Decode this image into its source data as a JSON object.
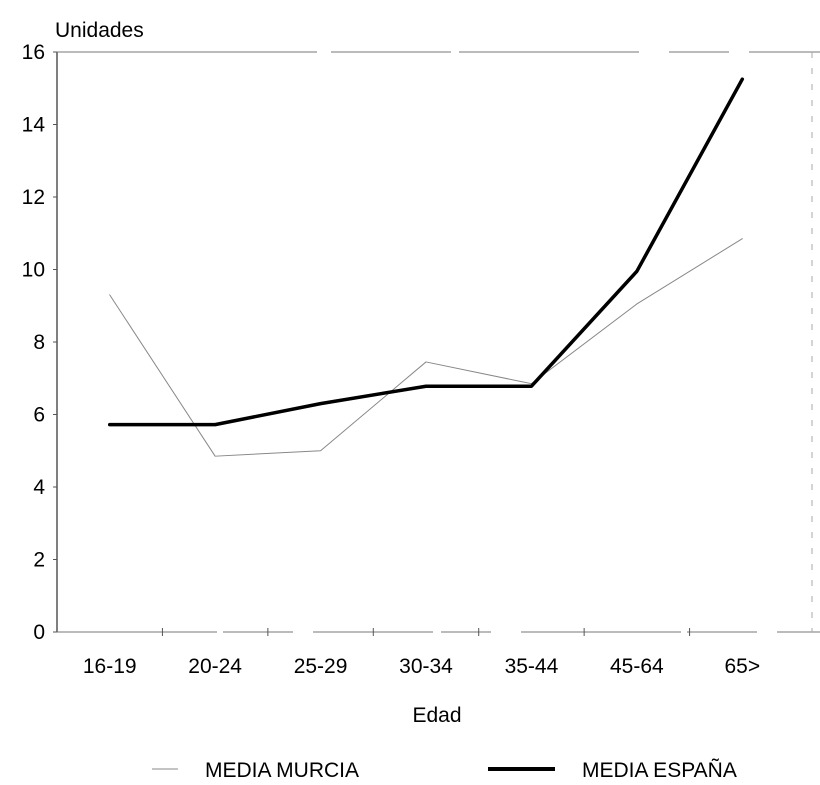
{
  "chart_data": {
    "type": "line",
    "title": "",
    "ylabel": "Unidades",
    "xlabel": "Edad",
    "categories": [
      "16-19",
      "20-24",
      "25-29",
      "30-34",
      "35-44",
      "45-64",
      "65>"
    ],
    "ylim": [
      0,
      16
    ],
    "yticks": [
      "0",
      "2",
      "4",
      "6",
      "8",
      "10",
      "12",
      "14",
      "16"
    ],
    "grid": false,
    "legend_position": "bottom",
    "series": [
      {
        "name": "MEDIA MURCIA",
        "values": [
          9.3,
          4.85,
          5.0,
          7.45,
          6.85,
          9.05,
          10.85
        ],
        "color": "#888888",
        "style": "thin"
      },
      {
        "name": "MEDIA ESPAÑA",
        "values": [
          5.72,
          5.72,
          6.3,
          6.78,
          6.78,
          9.95,
          15.25
        ],
        "color": "#000000",
        "style": "thick"
      }
    ]
  }
}
